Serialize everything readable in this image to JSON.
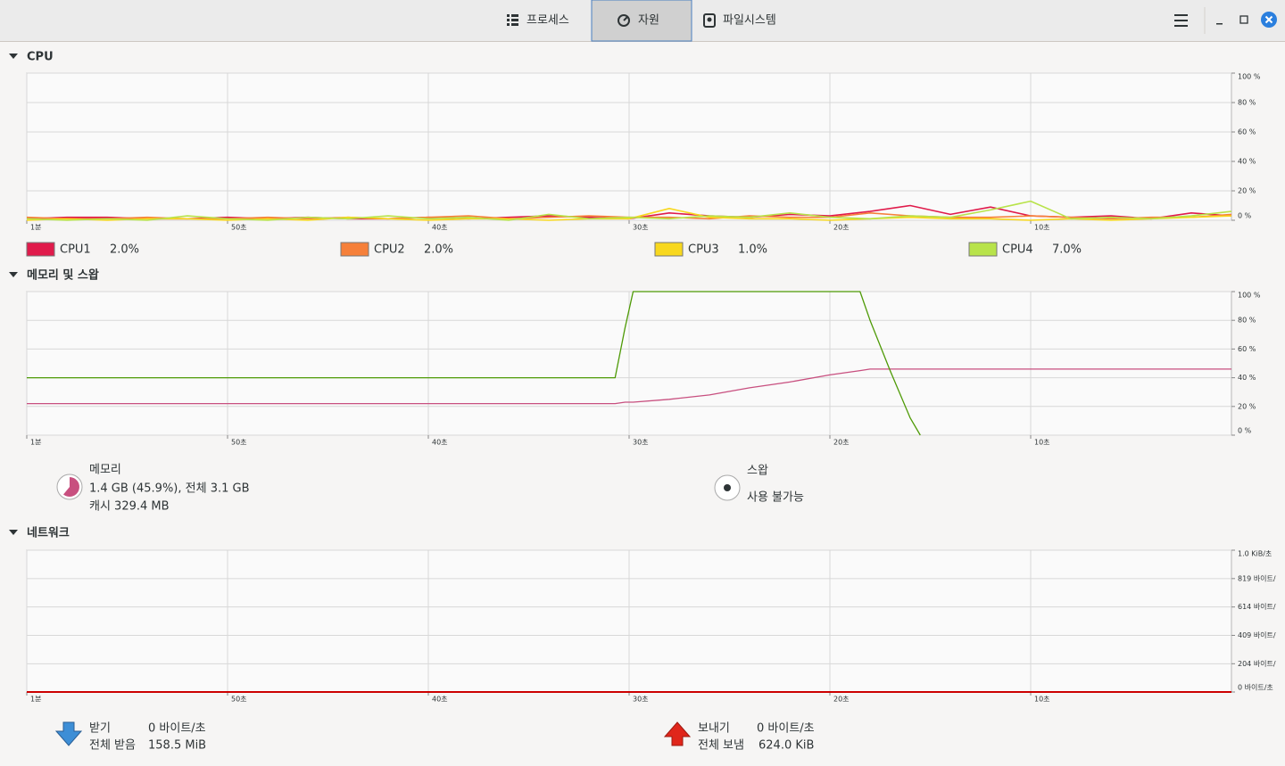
{
  "tabs": [
    "프로세스",
    "자원",
    "파일시스템"
  ],
  "cpu": {
    "title": "CPU",
    "xlim": [
      60,
      0
    ],
    "ylim": [
      0,
      100
    ],
    "xticks": [
      {
        "value": 60,
        "label": "1분"
      },
      {
        "value": 50,
        "label": "50초"
      },
      {
        "value": 40,
        "label": "40초"
      },
      {
        "value": 30,
        "label": "30초"
      },
      {
        "value": 20,
        "label": "20초"
      },
      {
        "value": 10,
        "label": "10초"
      }
    ],
    "yticks": [
      {
        "value": 100,
        "label": "100 %"
      },
      {
        "value": 80,
        "label": "80 %"
      },
      {
        "value": 60,
        "label": "60 %"
      },
      {
        "value": 40,
        "label": "40 %"
      },
      {
        "value": 20,
        "label": "20 %"
      },
      {
        "value": 0,
        "label": "0 %"
      }
    ],
    "x": [
      60,
      58,
      56,
      54,
      52,
      50,
      48,
      46,
      44,
      42,
      40,
      38,
      36,
      34,
      32,
      30,
      28,
      26,
      24,
      22,
      20,
      18,
      16,
      14,
      12,
      10,
      8,
      6,
      4,
      2,
      0
    ],
    "series": [
      {
        "name": "CPU1",
        "color": "#e01b4b",
        "current": "2.0%",
        "values": [
          1,
          2,
          2,
          1,
          1,
          2,
          1,
          2,
          1,
          1,
          2,
          1,
          2,
          3,
          2,
          1,
          5,
          3,
          2,
          4,
          3,
          6,
          10,
          4,
          9,
          3,
          2,
          3,
          1,
          5,
          3
        ]
      },
      {
        "name": "CPU2",
        "color": "#f6803a",
        "current": "2.0%",
        "values": [
          2,
          1,
          1,
          2,
          1,
          1,
          2,
          1,
          2,
          1,
          2,
          3,
          1,
          2,
          3,
          2,
          2,
          1,
          3,
          2,
          2,
          5,
          3,
          2,
          2,
          3,
          2,
          1,
          2,
          2,
          4
        ]
      },
      {
        "name": "CPU3",
        "color": "#f8d81e",
        "current": "1.0%",
        "values": [
          0,
          1,
          0,
          1,
          1,
          0,
          1,
          0,
          2,
          1,
          0,
          1,
          1,
          0,
          1,
          1,
          8,
          2,
          1,
          1,
          0,
          1,
          2,
          1,
          1,
          0,
          1,
          0,
          1,
          2,
          3
        ]
      },
      {
        "name": "CPU4",
        "color": "#b8e34a",
        "current": "7.0%",
        "values": [
          1,
          0,
          1,
          0,
          3,
          1,
          0,
          2,
          1,
          3,
          1,
          2,
          0,
          4,
          1,
          2,
          1,
          3,
          2,
          5,
          2,
          1,
          3,
          2,
          7,
          13,
          1,
          2,
          1,
          3,
          6
        ]
      }
    ]
  },
  "memory": {
    "title": "메모리 및 스왑",
    "xlim": [
      60,
      0
    ],
    "ylim": [
      0,
      100
    ],
    "xticks": [
      {
        "value": 60,
        "label": "1분"
      },
      {
        "value": 50,
        "label": "50초"
      },
      {
        "value": 40,
        "label": "40초"
      },
      {
        "value": 30,
        "label": "30초"
      },
      {
        "value": 20,
        "label": "20초"
      },
      {
        "value": 10,
        "label": "10초"
      }
    ],
    "yticks": [
      {
        "value": 100,
        "label": "100 %"
      },
      {
        "value": 80,
        "label": "80 %"
      },
      {
        "value": 60,
        "label": "60 %"
      },
      {
        "value": 40,
        "label": "40 %"
      },
      {
        "value": 20,
        "label": "20 %"
      },
      {
        "value": 0,
        "label": "0 %"
      }
    ],
    "x": [
      60,
      30.7,
      30.2,
      29.8,
      28,
      26,
      24,
      22,
      20,
      18.5,
      18,
      17,
      16,
      15.5,
      0
    ],
    "series": [
      {
        "name": "메모리",
        "color": "#c84f7f",
        "values": [
          22,
          22,
          23,
          23,
          25,
          28,
          33,
          37,
          42,
          45,
          46,
          46,
          46,
          46,
          46
        ]
      },
      {
        "name": "스왑",
        "color": "#4e9a06",
        "values": [
          40,
          40,
          75,
          100,
          100,
          100,
          100,
          100,
          100,
          100,
          80,
          45,
          12,
          0,
          null
        ]
      }
    ],
    "memory_usage": "1.4 GB (45.9%), 전체 3.1 GB",
    "memory_cache": "캐시 329.4 MB",
    "swap_usage": "사용 불가능"
  },
  "network": {
    "title": "네트워크",
    "xlim": [
      60,
      0
    ],
    "ylim": [
      0,
      1024
    ],
    "xticks": [
      {
        "value": 60,
        "label": "1분"
      },
      {
        "value": 50,
        "label": "50초"
      },
      {
        "value": 40,
        "label": "40초"
      },
      {
        "value": 30,
        "label": "30초"
      },
      {
        "value": 20,
        "label": "20초"
      },
      {
        "value": 10,
        "label": "10초"
      }
    ],
    "yticks": [
      {
        "value": 1024,
        "label": "1.0 KiB/초"
      },
      {
        "value": 819,
        "label": "819 바이트/"
      },
      {
        "value": 614,
        "label": "614 바이트/"
      },
      {
        "value": 409,
        "label": "409 바이트/"
      },
      {
        "value": 204,
        "label": "204 바이트/"
      },
      {
        "value": 0,
        "label": "0 바이트/초"
      }
    ],
    "x": [
      60,
      0
    ],
    "series": [
      {
        "name": "받기",
        "color": "#3465a4",
        "values": [
          0,
          0
        ]
      },
      {
        "name": "보내기",
        "color": "#cc0000",
        "values": [
          0,
          0
        ]
      }
    ],
    "receive_rate": "0 바이트/초",
    "receive_total_label": "전체 받음",
    "receive_total": "158.5 MiB",
    "send_rate": "0 바이트/초",
    "send_total_label": "전체 보냄",
    "send_total": "624.0 KiB"
  }
}
